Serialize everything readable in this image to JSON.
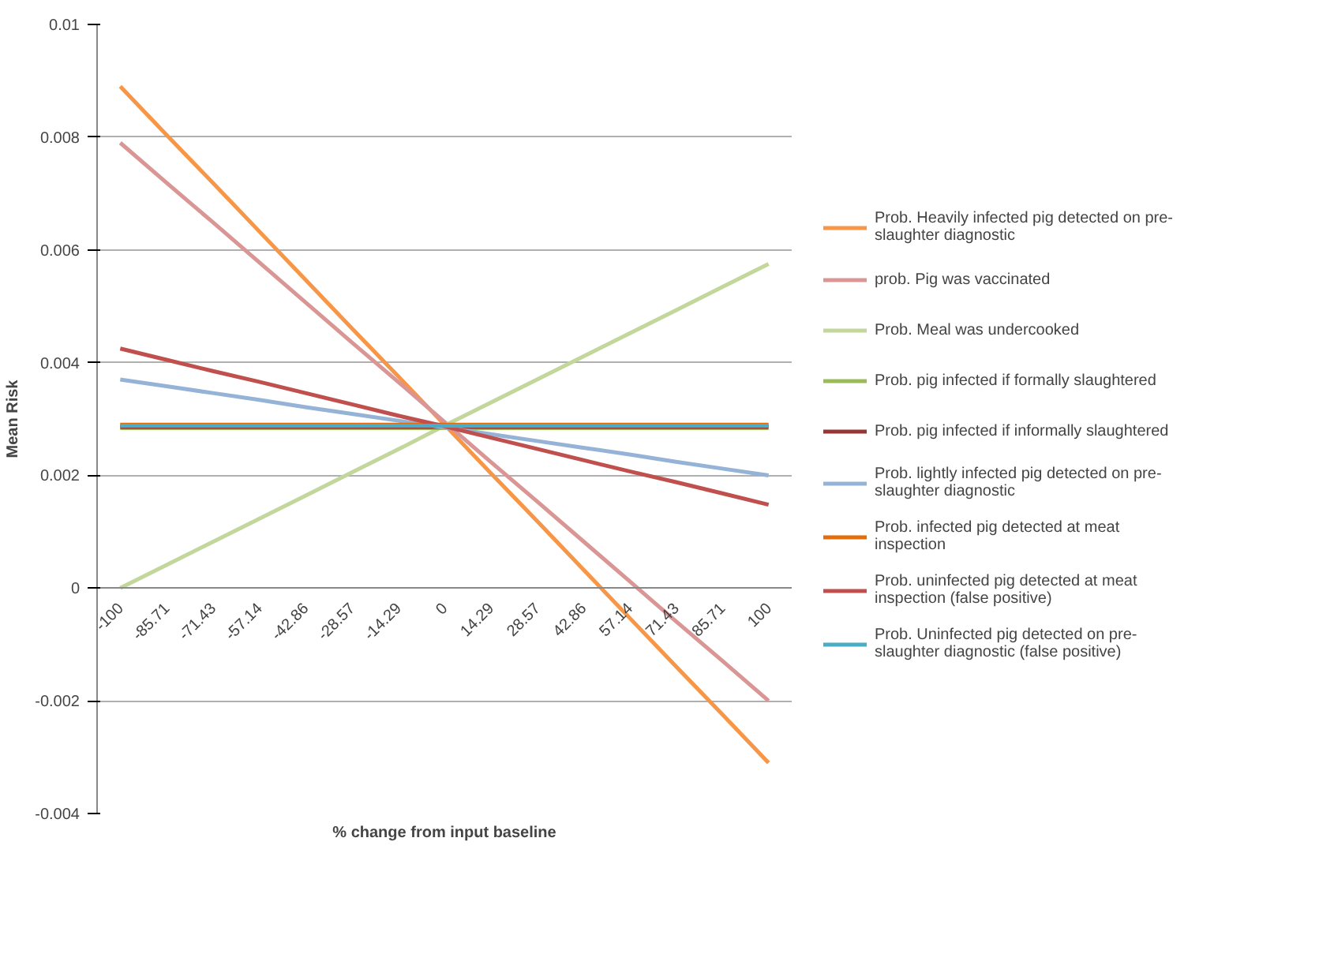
{
  "chart_data": {
    "type": "line",
    "xlabel": "% change from input baseline",
    "ylabel": "Mean Risk",
    "categories": [
      "-100",
      "-85.71",
      "-71.43",
      "-57.14",
      "-42.86",
      "-28.57",
      "-14.29",
      "0",
      "14.29",
      "28.57",
      "42.86",
      "57.14",
      "71.43",
      "85.71",
      "100"
    ],
    "ylim": [
      -0.004,
      0.01
    ],
    "yticks": [
      {
        "value": -0.004,
        "label": "-0.004"
      },
      {
        "value": -0.002,
        "label": "-0.002"
      },
      0,
      {
        "value": 0.002,
        "label": "0.002"
      },
      {
        "value": 0.004,
        "label": "0.004"
      },
      {
        "value": 0.006,
        "label": "0.006"
      },
      {
        "value": 0.008,
        "label": "0.008"
      },
      0.01
    ],
    "grid": "y",
    "legend": "right",
    "marker": "none",
    "series": [
      {
        "name": "Prob. Heavily infected pig detected on pre-slaughter diagnostic",
        "color": "#f79646",
        "values": [
          0.0089,
          0.00804,
          0.00719,
          0.00633,
          0.00547,
          0.00461,
          0.00376,
          0.0029,
          0.00204,
          0.00119,
          0.00033,
          -0.00053,
          -0.00139,
          -0.00224,
          -0.0031
        ]
      },
      {
        "name": "prob. Pig was vaccinated",
        "color": "#d99694",
        "values": [
          0.0079,
          0.00719,
          0.00649,
          0.00578,
          0.00507,
          0.00436,
          0.00366,
          0.00295,
          0.00224,
          0.00154,
          0.00083,
          0.00012,
          -0.00059,
          -0.00129,
          -0.002
        ]
      },
      {
        "name": "Prob. Meal was undercooked",
        "color": "#c3d69b",
        "values": [
          0,
          0.00041,
          0.00082,
          0.00123,
          0.00164,
          0.00205,
          0.00246,
          0.00288,
          0.00329,
          0.0037,
          0.00411,
          0.00452,
          0.00493,
          0.00534,
          0.00575
        ]
      },
      {
        "name": "Prob. pig infected if formally slaughtered",
        "color": "#9bbb59",
        "values": [
          0.00284,
          0.00284,
          0.00284,
          0.00284,
          0.00284,
          0.00284,
          0.00284,
          0.00284,
          0.00284,
          0.00284,
          0.00284,
          0.00284,
          0.00284,
          0.00284,
          0.00284
        ]
      },
      {
        "name": "Prob. pig infected if informally slaughtered",
        "color": "#953735",
        "values": [
          0.00286,
          0.00286,
          0.00286,
          0.00286,
          0.00286,
          0.00286,
          0.00286,
          0.00286,
          0.00286,
          0.00286,
          0.00286,
          0.00286,
          0.00286,
          0.00286,
          0.00286
        ]
      },
      {
        "name": "Prob. lightly infected pig detected on pre-slaughter diagnostic",
        "color": "#95b3d7",
        "values": [
          0.0037,
          0.00358,
          0.00346,
          0.00334,
          0.00321,
          0.00309,
          0.00297,
          0.00285,
          0.00273,
          0.00261,
          0.00249,
          0.00237,
          0.00224,
          0.00212,
          0.002
        ]
      },
      {
        "name": "Prob. infected pig detected at meat inspection",
        "color": "#e46c0a",
        "values": [
          0.0029,
          0.0029,
          0.0029,
          0.0029,
          0.0029,
          0.0029,
          0.0029,
          0.0029,
          0.0029,
          0.0029,
          0.0029,
          0.0029,
          0.0029,
          0.0029,
          0.0029
        ]
      },
      {
        "name": "Prob. uninfected pig detected at meat inspection (false positive)",
        "color": "#c0504d",
        "values": [
          0.00425,
          0.00405,
          0.00385,
          0.00366,
          0.00346,
          0.00326,
          0.00306,
          0.00287,
          0.00267,
          0.00247,
          0.00227,
          0.00207,
          0.00188,
          0.00168,
          0.00148
        ]
      },
      {
        "name": "Prob. Uninfected pig detected on pre-slaughter diagnostic (false positive)",
        "color": "#4bacc6",
        "values": [
          0.00288,
          0.00288,
          0.00288,
          0.00288,
          0.00288,
          0.00288,
          0.00288,
          0.00288,
          0.00288,
          0.00288,
          0.00288,
          0.00288,
          0.00288,
          0.00288,
          0.00288
        ]
      }
    ]
  }
}
